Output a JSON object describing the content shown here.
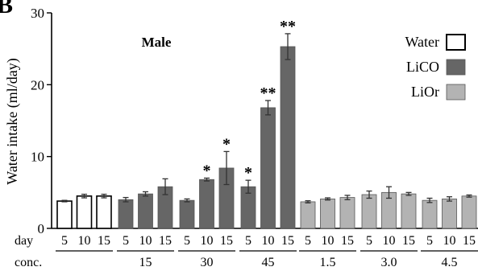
{
  "panel_letter": "B",
  "chart_data": {
    "type": "bar",
    "title": "Male",
    "ylabel": "Water intake (ml/day)",
    "ylim": [
      0,
      30
    ],
    "yticks": [
      0,
      10,
      20,
      30
    ],
    "row_labels": {
      "day": "day",
      "conc": "conc."
    },
    "legend": {
      "placement": "top-right",
      "entries": [
        {
          "name": "Water",
          "color": "#ffffff"
        },
        {
          "name": "LiCO",
          "color": "#666666"
        },
        {
          "name": "LiOr",
          "color": "#b3b3b3"
        }
      ]
    },
    "colors": {
      "Water": "#ffffff",
      "LiCO": "#666666",
      "LiOr": "#b3b3b3"
    },
    "groups": [
      {
        "treatment": "Water",
        "conc": "",
        "days": [
          "5",
          "10",
          "15"
        ],
        "values": [
          3.8,
          4.5,
          4.5
        ],
        "errors": [
          0.1,
          0.25,
          0.25
        ],
        "marks": [
          "",
          "",
          ""
        ]
      },
      {
        "treatment": "LiCO",
        "conc": "15",
        "days": [
          "5",
          "10",
          "15"
        ],
        "values": [
          4.0,
          4.8,
          5.8
        ],
        "errors": [
          0.3,
          0.3,
          1.1
        ],
        "marks": [
          "",
          "",
          ""
        ]
      },
      {
        "treatment": "LiCO",
        "conc": "30",
        "days": [
          "5",
          "10",
          "15"
        ],
        "values": [
          3.9,
          6.8,
          8.4
        ],
        "errors": [
          0.2,
          0.2,
          2.3
        ],
        "marks": [
          "",
          "*",
          "*"
        ]
      },
      {
        "treatment": "LiCO",
        "conc": "45",
        "days": [
          "5",
          "10",
          "15"
        ],
        "values": [
          5.8,
          16.8,
          25.3
        ],
        "errors": [
          0.9,
          1.0,
          1.8
        ],
        "marks": [
          "*",
          "**",
          "**"
        ]
      },
      {
        "treatment": "LiOr",
        "conc": "1.5",
        "days": [
          "5",
          "10",
          "15"
        ],
        "values": [
          3.7,
          4.1,
          4.3
        ],
        "errors": [
          0.15,
          0.15,
          0.3
        ],
        "marks": [
          "",
          "",
          ""
        ]
      },
      {
        "treatment": "LiOr",
        "conc": "3.0",
        "days": [
          "5",
          "10",
          "15"
        ],
        "values": [
          4.7,
          5.0,
          4.8
        ],
        "errors": [
          0.5,
          0.8,
          0.2
        ],
        "marks": [
          "",
          "",
          ""
        ]
      },
      {
        "treatment": "LiOr",
        "conc": "4.5",
        "days": [
          "5",
          "10",
          "15"
        ],
        "values": [
          3.9,
          4.1,
          4.5
        ],
        "errors": [
          0.3,
          0.3,
          0.15
        ],
        "marks": [
          "",
          "",
          ""
        ]
      }
    ]
  }
}
